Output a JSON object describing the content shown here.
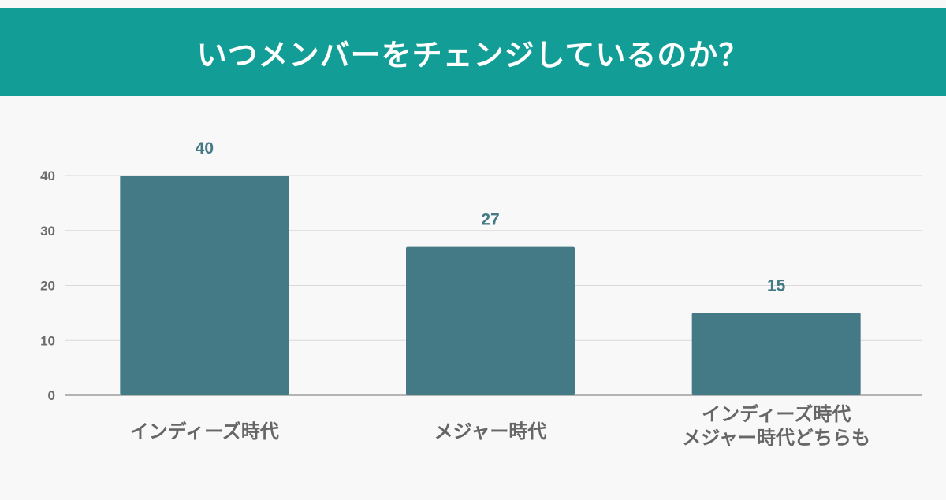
{
  "colors": {
    "header_bg": "#129e96",
    "bar": "#437a86",
    "gridline": "#d9d9d9",
    "axis": "#9e9e9e"
  },
  "chart_data": {
    "type": "bar",
    "title": "いつメンバーをチェンジしているのか？",
    "categories": [
      [
        "インディーズ時代"
      ],
      [
        "メジャー時代"
      ],
      [
        "インディーズ時代",
        "メジャー時代どちらも"
      ]
    ],
    "values": [
      40,
      27,
      15
    ],
    "data_labels": [
      "40",
      "27",
      "15"
    ],
    "yticks": [
      0,
      10,
      20,
      30,
      40
    ],
    "ylim": [
      0,
      40
    ],
    "grid": true,
    "legend": "none"
  }
}
